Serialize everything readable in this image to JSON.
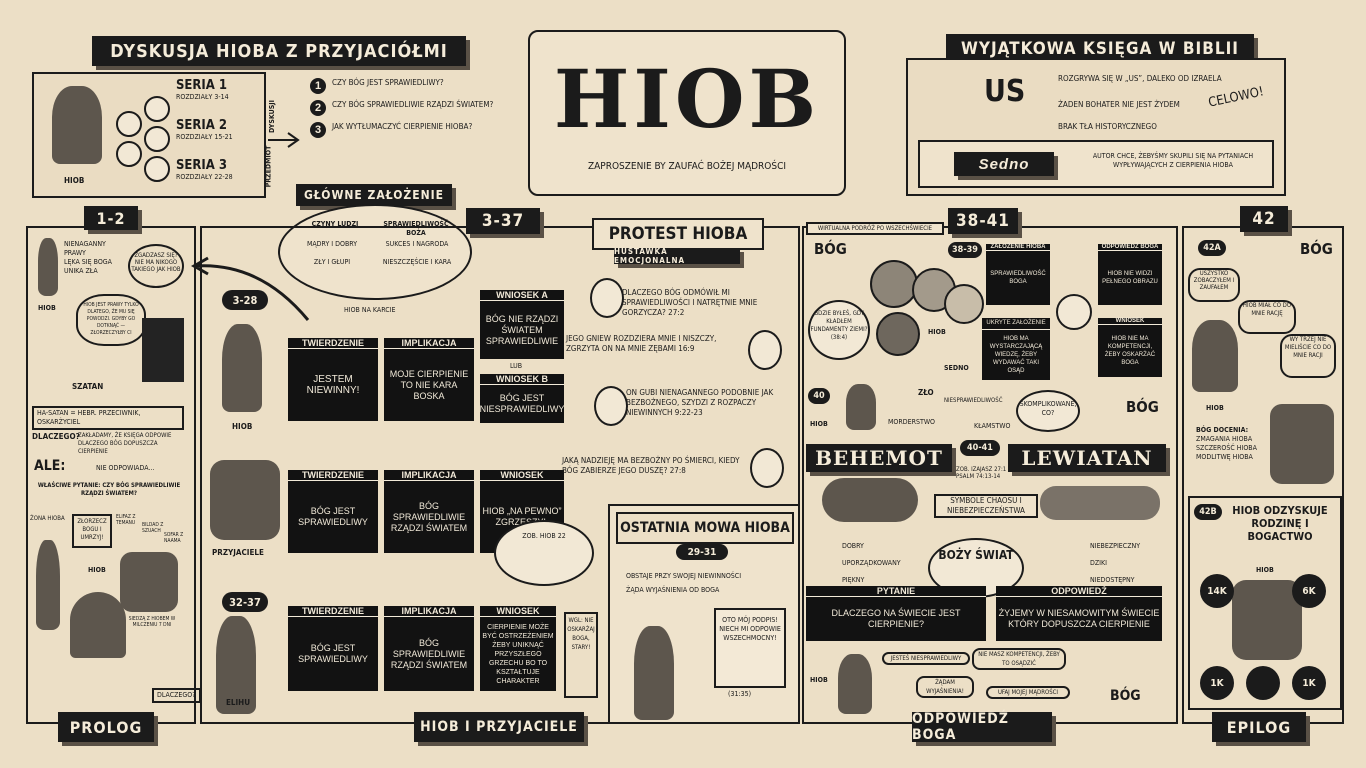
{
  "title": "HIOB",
  "subtitle": "ZAPROSZENIE BY ZAUFAĆ BOŻEJ MĄDROŚCI",
  "left_banner": "DYSKUSJA HIOBA Z PRZYJACIÓŁMI",
  "right_banner": "WYJĄTKOWA KSIĘGA W BIBLII",
  "discussion": {
    "series": [
      {
        "label": "SERIA 1",
        "chapters": "ROZDZIAŁY 3-14"
      },
      {
        "label": "SERIA 2",
        "chapters": "ROZDZIAŁY 15-21"
      },
      {
        "label": "SERIA 3",
        "chapters": "ROZDZIAŁY 22-28"
      }
    ],
    "side_label": "DYSKUSJI",
    "subject_label": "PRZEDMIOT",
    "job_label": "HIOB",
    "questions": [
      {
        "n": "1",
        "text": "CZY BÓG JEST SPRAWIEDLIWY?"
      },
      {
        "n": "2",
        "text": "CZY BÓG SPRAWIEDLIWIE RZĄDZI ŚWIATEM?"
      },
      {
        "n": "3",
        "text": "JAK WYTŁUMACZYĆ CIERPIENIE HIOBA?"
      }
    ]
  },
  "unique": {
    "items": [
      "ROZGRYWA SIĘ W „US”, DALEKO OD IZRAELA",
      "ŻADEN BOHATER NIE JEST ŻYDEM",
      "BRAK TŁA HISTORYCZNEGO"
    ],
    "celowo": "CELOWO!",
    "us": "US",
    "sedno_label": "Sedno",
    "sedno_text": "AUTOR CHCE, ŻEBYŚMY SKUPILI SIĘ NA PYTANIACH WYPŁYWAJĄCYCH Z CIERPIENIA HIOBA"
  },
  "main_assumption": {
    "title": "GŁÓWNE ZAŁOŻENIE",
    "col1_head": "CZYNY LUDZI",
    "col2_head": "SPRAWIEDLIWOŚĆ BOŻA",
    "rows": [
      [
        "MĄDRY I DOBRY",
        "SUKCES I NAGRODA"
      ],
      [
        "ZŁY I GŁUPI",
        "NIESZCZĘŚCIE I KARA"
      ]
    ]
  },
  "sections": {
    "prolog": {
      "range": "1-2",
      "label": "PROLOG"
    },
    "dialog": {
      "range": "3-37",
      "label": "HIOB I PRZYJACIELE"
    },
    "god": {
      "range": "38-41",
      "label": "ODPOWIEDŹ BOGA"
    },
    "epilog": {
      "range": "42",
      "label": "EPILOG"
    }
  },
  "prolog": {
    "traits": [
      "NIENAGANNY",
      "PRAWY",
      "LĘKA SIĘ BOGA",
      "UNIKA ZŁA"
    ],
    "job": "HIOB",
    "bubble": "ZGADZASZ SIĘ? NIE MA NIKOGO TAKIEGO JAK HIOB",
    "note": "HIOB JEST PRAWY TYLKO DLATEGO, ŻE MU SIĘ POWODZI. GDYBY GO DOTKNĄĆ — ZŁORZECZYŁBY CI",
    "satan": "SZATAN",
    "satan_def": "HA-SATAN = HEBR. PRZECIWNIK, OSKARŻYCIEL",
    "why": "DLACZEGO?",
    "why_text": "ZAKŁADAMY, ŻE KSIĘGA ODPOWIE DLACZEGO BÓG DOPUSZCZA CIERPIENIE",
    "but": "ALE:",
    "but_text": "NIE ODPOWIADA...",
    "right_question": "WŁAŚCIWE PYTANIE: CZY BÓG SPRAWIEDLIWIE RZĄDZI ŚWIATEM?",
    "wife": "ŻONA HIOBA",
    "wife_quote": "ZŁORZECZ BOGU I UMRZYJ!",
    "friends": [
      "ELIFAZ Z TEMANU",
      "BILDAD Z SZUACH",
      "SOFAR Z NAAMA"
    ],
    "job2": "HIOB",
    "friends_note": "SIEDZĄ Z HIOBEM W MILCZENIU 7 DNI",
    "why2": "DLACZEGO?"
  },
  "dialog": {
    "range_a": "3-28",
    "range_b": "32-37",
    "job_on_trial": "HIOB NA KARCIE",
    "job": "HIOB",
    "friends": "PRZYJACIELE",
    "elihu": "ELIHU",
    "rows": [
      {
        "thesis_head": "TWIERDZENIE",
        "thesis": "JESTEM NIEWINNY!",
        "impl_head": "IMPLIKACJA",
        "impl": "MOJE CIERPIENIE TO NIE KARA BOSKA",
        "concl_head": "WNIOSEK A",
        "concl": "BÓG NIE RZĄDZI ŚWIATEM SPRAWIEDLIWIE",
        "or": "LUB",
        "concl2_head": "WNIOSEK B",
        "concl2": "BÓG JEST NIESPRAWIEDLIWY"
      },
      {
        "thesis_head": "TWIERDZENIE",
        "thesis": "BÓG JEST SPRAWIEDLIWY",
        "impl_head": "IMPLIKACJA",
        "impl": "BÓG SPRAWIEDLIWIE RZĄDZI ŚWIATEM",
        "concl_head": "WNIOSEK",
        "concl": "HIOB „NA PEWNO” ZGRZESZYŁ"
      },
      {
        "thesis_head": "TWIERDZENIE",
        "thesis": "BÓG JEST SPRAWIEDLIWY",
        "impl_head": "IMPLIKACJA",
        "impl": "BÓG SPRAWIEDLIWIE RZĄDZI ŚWIATEM",
        "concl_head": "WNIOSEK",
        "concl": "CIERPIENIE MOŻE BYĆ OSTRZEŻENIEM ŻEBY UNIKNĄĆ PRZYSZŁEGO GRZECHU BO TO KSZTAŁTUJE CHARAKTER"
      }
    ],
    "job22": "ZOB. HIOB 22",
    "wgl": "WGL: NIE OSKARŻAJ BOGA, STARY!"
  },
  "protest": {
    "title": "PROTEST HIOBA",
    "subtitle": "HUŚTAWKA EMOCJONALNA",
    "quotes": [
      {
        "text": "DLACZEGO BÓG ODMÓWIŁ MI SPRAWIEDLIWOŚCI I NATRĘTNIE MNIE GORZYCZA?",
        "ref": "27:2"
      },
      {
        "text": "JEGO GNIEW ROZDZIERA MNIE I NISZCZY, ZGRZYTA ON NA MNIE ZĘBAMI",
        "ref": "16:9"
      },
      {
        "text": "ON GUBI NIENAGANNEGO PODOBNIE JAK BEZBOŻNEGO, SZYDZI Z ROZPACZY NIEWINNYCH",
        "ref": "9:22-23"
      },
      {
        "text": "JAKĄ NADZIEJĘ MA BEZBOŻNY PO ŚMIERCI, KIEDY BÓG ZABIERZE JEGO DUSZĘ?",
        "ref": "27:8"
      }
    ]
  },
  "last_speech": {
    "title": "OSTATNIA MOWA HIOBA",
    "range": "29-31",
    "items": [
      "OBSTAJE PRZY SWOJEJ NIEWINNOŚCI",
      "ŻĄDA WYJAŚNIENIA OD BOGA"
    ],
    "scroll": "OTO MÓJ PODPIS! NIECH MI ODPOWIE WSZECHMOCNY!",
    "ref": "(31:35)"
  },
  "god": {
    "virtual_tour": "WIRTUALNA PODRÓŻ PO WSZECHŚWIECIE",
    "bog": "BÓG",
    "range_a": "38-39",
    "question_bubble": "GDZIE BYŁEŚ, GDY KŁADŁEM FUNDAMENTY ZIEMI?",
    "question_ref": "(38:4)",
    "job_label": "HIOB",
    "sedno": "SEDNO",
    "assumption_head": "ZAŁOŻENIE HIOBA",
    "assumption": "SPRAWIEDLIWOŚĆ BOGA",
    "hidden_head": "UKRYTE ZAŁOŻENIE",
    "hidden": "HIOB MA WYSTARCZAJĄCĄ WIEDZĘ, ŻEBY WYDAWAĆ TAKI OSĄD",
    "answer_head": "ODPOWIEDŹ BOGA",
    "answer": "HIOB NIE WIDZI PEŁNEGO OBRAZU",
    "conclusion_head": "WNIOSEK",
    "conclusion": "HIOB NIE MA KOMPETENCJI, ŻEBY OSKARŻAĆ BOGA",
    "ref40": "40",
    "injustice": "NIESPRAWIEDLIWOŚĆ",
    "evil": "ZŁO",
    "murder": "MORDERSTWO",
    "lie": "KŁAMSTWO",
    "complicated": "SKOMPLIKOWANE, CO?",
    "bog2": "BÓG",
    "range_b": "40-41",
    "behemot": "BEHEMOT",
    "lewiatan": "LEWIATAN",
    "refs": "ZOB. IZAJASZ 27:1 I PSALM 74:13-14",
    "symbols": "SYMBOLE CHAOSU I NIEBEZPIECZEŃSTWA",
    "world_left": [
      "DOBRY",
      "UPORZĄDKOWANY",
      "PIĘKNY"
    ],
    "world_right": [
      "NIEBEZPIECZNY",
      "DZIKI",
      "NIEDOSTĘPNY"
    ],
    "world": "BOŻY ŚWIAT",
    "question_head": "PYTANIE",
    "question": "DLACZEGO NA ŚWIECIE JEST CIERPIENIE?",
    "reply_head": "ODPOWIEDŹ",
    "reply": "ŻYJEMY W NIESAMOWITYM ŚWIECIE KTÓRY DOPUSZCZA CIERPIENIE",
    "job_bubble1": "JESTEŚ NIESPRAWIEDLIWY",
    "god_bubble1": "NIE MASZ KOMPETENCJI, ŻEBY TO OSĄDZIĆ",
    "job_bubble2": "ŻĄDAM WYJAŚNIENIA!",
    "god_bubble2": "UFAJ MOJEJ MĄDROŚCI",
    "bog3": "BÓG"
  },
  "epilog": {
    "ref_a": "42a",
    "bog": "BÓG",
    "job_bubble": "USZYSTKO ZOBACZYŁEM I ZAUFAŁEM",
    "bubble2": "HIOB MIAŁ CO DO MNIE RACJĘ",
    "bubble3": "WY TRZEJ NIE MIELIŚCIE CO DO MNIE RACJI",
    "job": "HIOB",
    "values_head": "BÓG DOCENIA:",
    "values": [
      "ZMAGANIA HIOBA",
      "SZCZEROŚĆ HIOBA",
      "MODLITWĘ HIOBA"
    ],
    "ref_b": "42b",
    "restored": "HIOB ODZYSKUJE RODZINĘ I BOGACTWO",
    "job2": "HIOB",
    "counts": [
      "14K",
      "6K",
      "1K",
      "1K"
    ]
  },
  "colors": {
    "paper": "#ecdfc6",
    "ink": "#1b1b1b"
  }
}
